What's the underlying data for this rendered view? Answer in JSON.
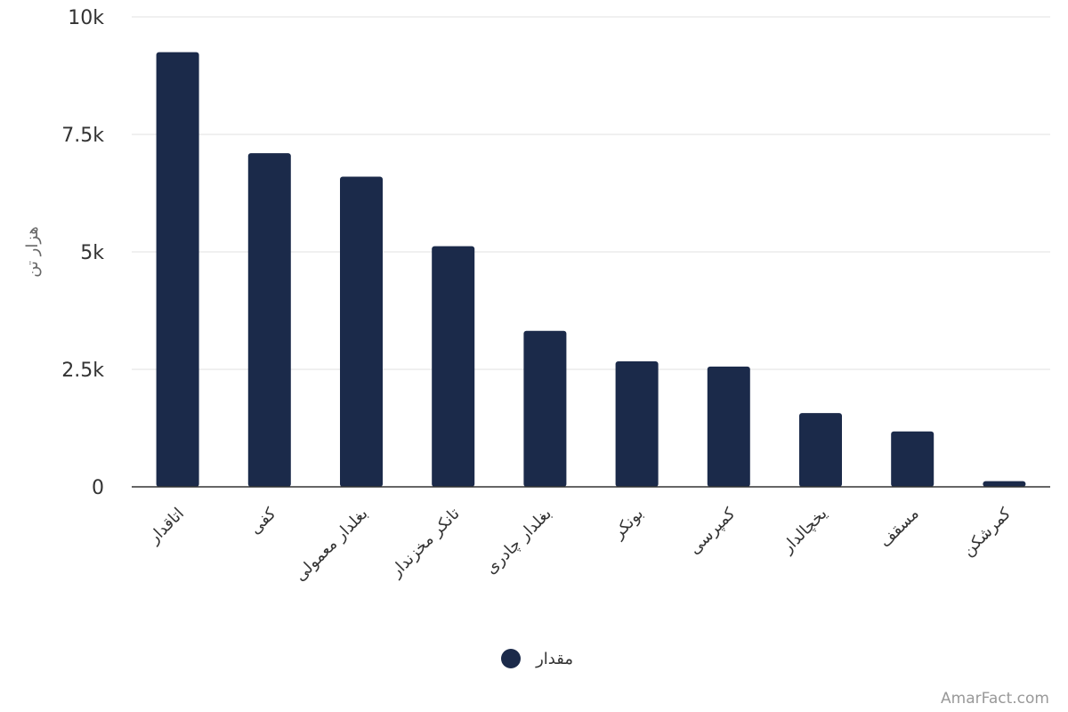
{
  "chart_data": {
    "type": "bar",
    "ylabel": "هزار تن",
    "ylim": [
      0,
      10000
    ],
    "yticks": [
      0,
      2500,
      5000,
      7500,
      10000
    ],
    "ytick_labels": [
      "0",
      "2.5k",
      "5k",
      "7.5k",
      "10k"
    ],
    "grid": true,
    "legend_position": "bottom-center",
    "series": [
      {
        "name": "مقدار",
        "color": "#1b2a4a",
        "values": [
          9250,
          7100,
          6600,
          5120,
          3320,
          2670,
          2560,
          1570,
          1180,
          120
        ]
      }
    ],
    "categories": [
      "اتاقدار",
      "کفی",
      "بغلدار معمولی",
      "تانکر مخزندار",
      "بغلدار چادری",
      "بونکر",
      "کمپرسی",
      "یخچالدار",
      "مسقف",
      "کمرشکن"
    ]
  },
  "credit": "AmarFact.com"
}
